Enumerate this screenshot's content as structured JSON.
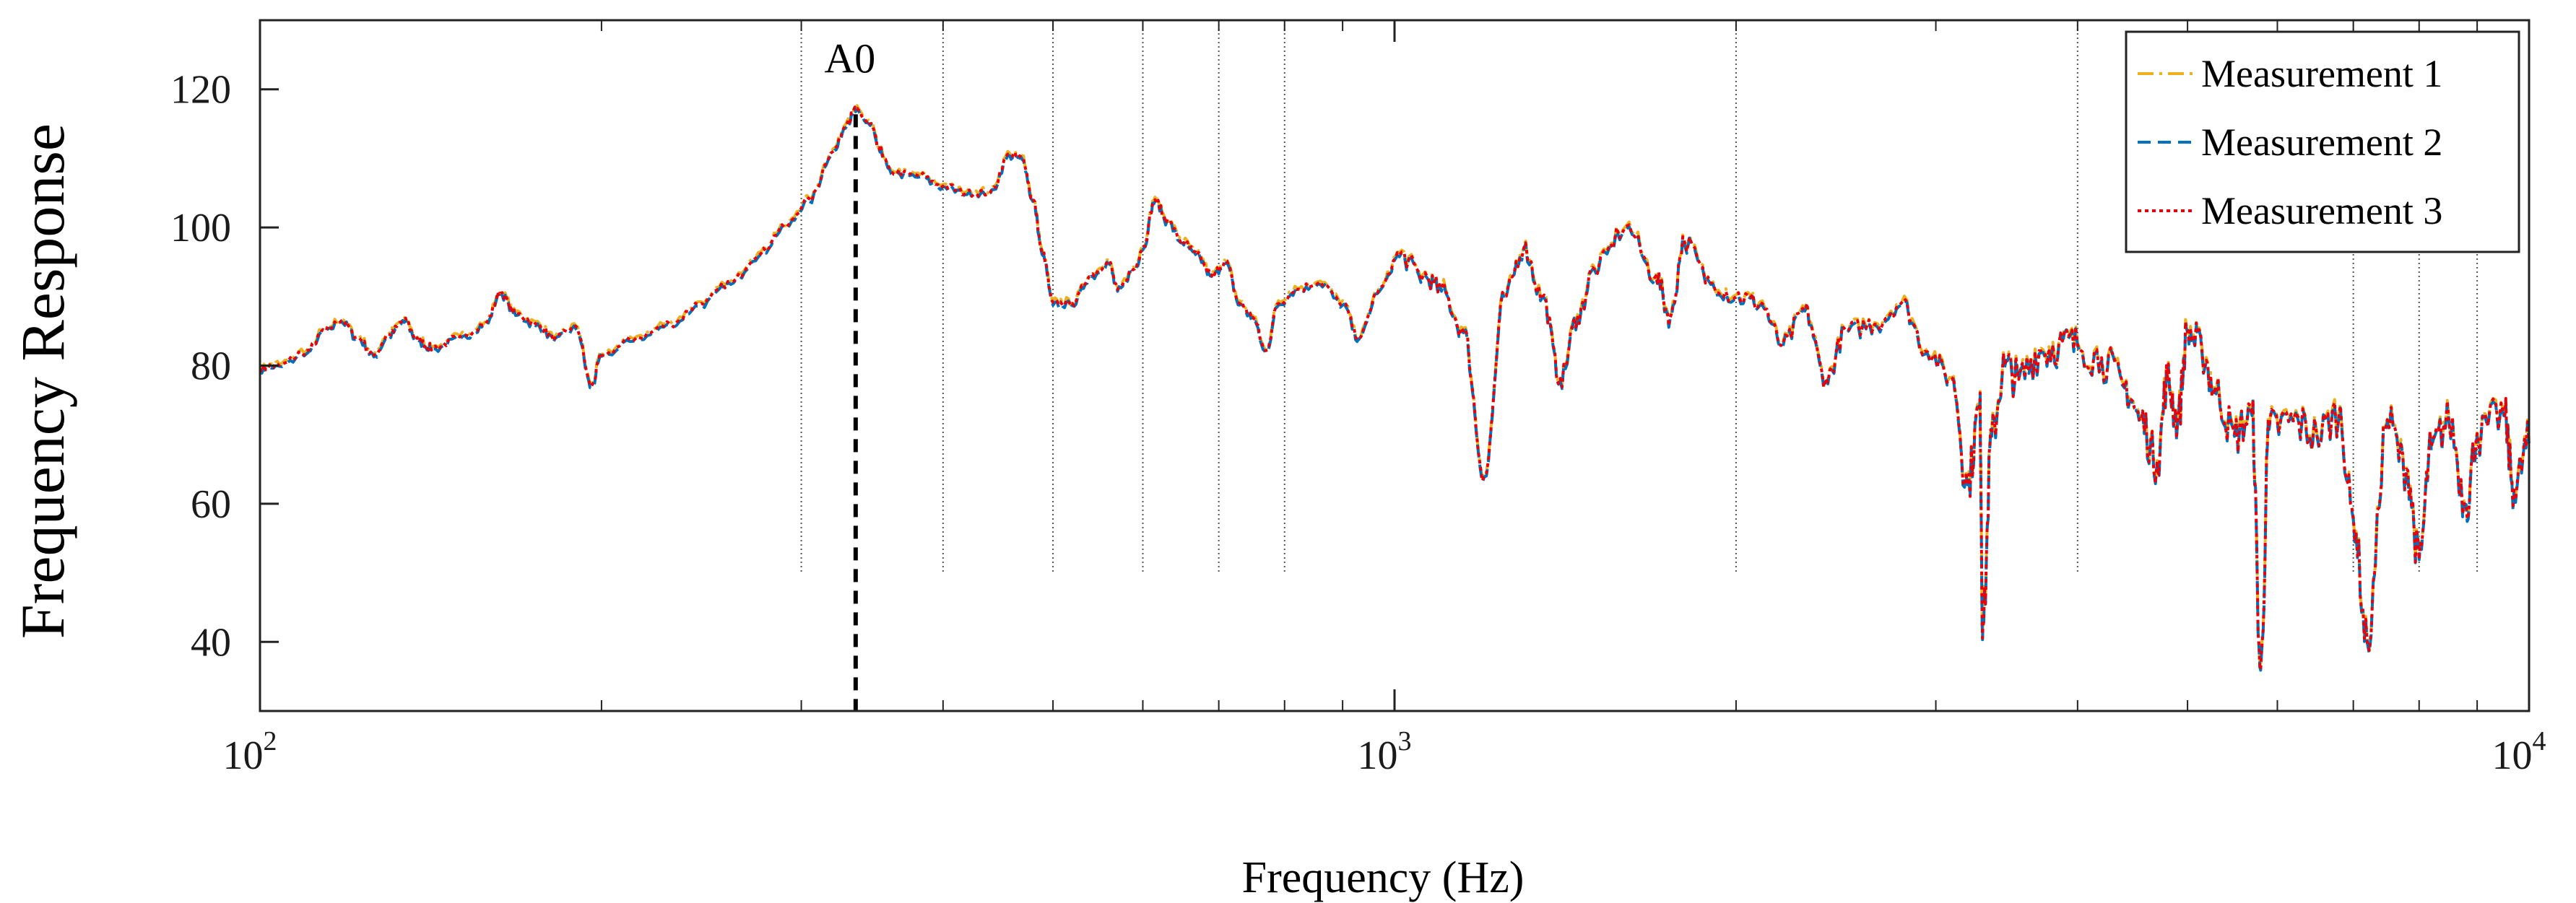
{
  "chart_data": {
    "type": "line",
    "title": "",
    "xlabel": "Frequency (Hz)",
    "ylabel": "Frequency Response",
    "xscale": "log",
    "xlim": [
      100,
      10000
    ],
    "ylim": [
      30,
      130
    ],
    "grid": false,
    "legend_position": "top-right",
    "x_ticks": [
      {
        "value": 100,
        "base": "10",
        "exp": "2"
      },
      {
        "value": 1000,
        "base": "10",
        "exp": "3"
      },
      {
        "value": 10000,
        "base": "10",
        "exp": "4"
      }
    ],
    "y_ticks": [
      40,
      60,
      80,
      100,
      120
    ],
    "annotation": {
      "label": "A0",
      "x": 335,
      "y": 117
    },
    "mode_lines_x": [
      300,
      400,
      500,
      600,
      700,
      800,
      2000,
      4000,
      7000,
      8000,
      9000
    ],
    "mode_lines_bottom_y": 50,
    "curve_points": [
      [
        100,
        79.5
      ],
      [
        104,
        80
      ],
      [
        110,
        82
      ],
      [
        114,
        85
      ],
      [
        118,
        86.5
      ],
      [
        122,
        84
      ],
      [
        126,
        81.5
      ],
      [
        130,
        84.5
      ],
      [
        134,
        86.5
      ],
      [
        138,
        83.5
      ],
      [
        142,
        82.5
      ],
      [
        150,
        84
      ],
      [
        158,
        86
      ],
      [
        163,
        90.5
      ],
      [
        168,
        87.5
      ],
      [
        175,
        86
      ],
      [
        182,
        84
      ],
      [
        190,
        85.5
      ],
      [
        196,
        77
      ],
      [
        200,
        81.5
      ],
      [
        215,
        84
      ],
      [
        230,
        86
      ],
      [
        245,
        89
      ],
      [
        260,
        92
      ],
      [
        275,
        96
      ],
      [
        290,
        100
      ],
      [
        305,
        104
      ],
      [
        320,
        111
      ],
      [
        330,
        115.5
      ],
      [
        335,
        117
      ],
      [
        345,
        115
      ],
      [
        352,
        111
      ],
      [
        360,
        108
      ],
      [
        380,
        107.5
      ],
      [
        400,
        106
      ],
      [
        420,
        105
      ],
      [
        440,
        105
      ],
      [
        458,
        110.5
      ],
      [
        470,
        110
      ],
      [
        480,
        104
      ],
      [
        490,
        96
      ],
      [
        500,
        89
      ],
      [
        520,
        89
      ],
      [
        540,
        93
      ],
      [
        560,
        95
      ],
      [
        570,
        91
      ],
      [
        590,
        94
      ],
      [
        600,
        97
      ],
      [
        615,
        104
      ],
      [
        630,
        101
      ],
      [
        650,
        98
      ],
      [
        670,
        96
      ],
      [
        690,
        93
      ],
      [
        710,
        95
      ],
      [
        730,
        89
      ],
      [
        750,
        87
      ],
      [
        770,
        82
      ],
      [
        790,
        89
      ],
      [
        820,
        91
      ],
      [
        860,
        92
      ],
      [
        900,
        89
      ],
      [
        930,
        84
      ],
      [
        970,
        91
      ],
      [
        1010,
        96
      ],
      [
        1060,
        93
      ],
      [
        1100,
        91
      ],
      [
        1150,
        85
      ],
      [
        1200,
        64
      ],
      [
        1250,
        90
      ],
      [
        1300,
        97
      ],
      [
        1350,
        90
      ],
      [
        1400,
        78
      ],
      [
        1450,
        87
      ],
      [
        1500,
        94
      ],
      [
        1600,
        100
      ],
      [
        1700,
        93
      ],
      [
        1750,
        87
      ],
      [
        1800,
        98
      ],
      [
        1900,
        92
      ],
      [
        2000,
        90
      ],
      [
        2100,
        89
      ],
      [
        2200,
        83
      ],
      [
        2300,
        88
      ],
      [
        2400,
        78
      ],
      [
        2500,
        85
      ],
      [
        2650,
        86
      ],
      [
        2800,
        89
      ],
      [
        2950,
        82
      ],
      [
        3100,
        78
      ],
      [
        3200,
        63
      ],
      [
        3280,
        74
      ],
      [
        3300,
        42
      ],
      [
        3360,
        70
      ],
      [
        3450,
        80
      ],
      [
        3550,
        78
      ],
      [
        3700,
        82
      ],
      [
        3850,
        83
      ],
      [
        4000,
        83
      ],
      [
        4200,
        81
      ],
      [
        4400,
        77
      ],
      [
        4550,
        72
      ],
      [
        4700,
        66
      ],
      [
        4800,
        78
      ],
      [
        4900,
        72
      ],
      [
        5000,
        85
      ],
      [
        5150,
        82
      ],
      [
        5300,
        76
      ],
      [
        5500,
        70
      ],
      [
        5700,
        73
      ],
      [
        5800,
        36
      ],
      [
        5900,
        71
      ],
      [
        6200,
        72
      ],
      [
        6500,
        70
      ],
      [
        6800,
        73
      ],
      [
        7000,
        58
      ],
      [
        7200,
        40
      ],
      [
        7500,
        72
      ],
      [
        7800,
        65
      ],
      [
        8000,
        52
      ],
      [
        8200,
        68
      ],
      [
        8500,
        72
      ],
      [
        8800,
        60
      ],
      [
        9000,
        70
      ],
      [
        9500,
        73
      ],
      [
        9700,
        62
      ],
      [
        10000,
        69
      ]
    ],
    "series": [
      {
        "name": "Measurement 1",
        "color": "#EDB120",
        "dash": "22 8 4 8",
        "offset": 0.25
      },
      {
        "name": "Measurement 2",
        "color": "#0072BD",
        "dash": "18 10",
        "offset": -0.25
      },
      {
        "name": "Measurement 3",
        "color": "#E8000B",
        "dash": "5 5",
        "offset": 0
      }
    ]
  }
}
